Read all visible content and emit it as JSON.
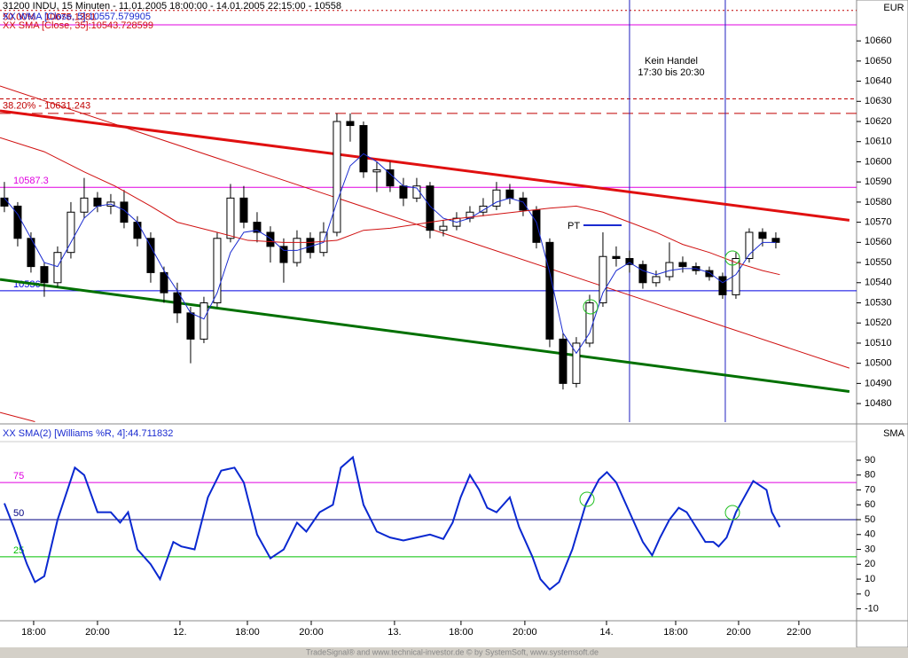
{
  "chart_data": [
    {
      "type": "candlestick",
      "title": "31200 INDU, 15 Minuten - 11.01.2005 18:00:00 - 14.01.2005 22:15:00 - 10558",
      "axis_label": "EUR",
      "x": [
        0,
        1,
        2,
        3,
        4,
        5,
        6,
        7,
        8,
        9,
        10,
        11,
        12,
        13,
        14,
        15,
        16,
        17,
        18,
        19,
        20,
        21,
        22,
        23,
        24,
        25,
        26,
        27,
        28,
        29,
        30,
        31,
        32,
        33,
        34,
        35,
        36,
        37,
        38,
        39,
        40,
        41,
        42,
        43,
        44,
        45,
        46,
        47,
        48,
        49,
        50,
        51,
        52,
        53,
        54,
        55,
        56,
        57,
        58
      ],
      "open": [
        10582,
        10578,
        10562,
        10548,
        10540,
        10555,
        10575,
        10582,
        10578,
        10580,
        10570,
        10562,
        10545,
        10535,
        10525,
        10512,
        10530,
        10562,
        10582,
        10570,
        10565,
        10558,
        10550,
        10562,
        10555,
        10565,
        10620,
        10618,
        10595,
        10596,
        10588,
        10582,
        10588,
        10566,
        10568,
        10572,
        10575,
        10578,
        10586,
        10582,
        10576,
        10560,
        10512,
        10490,
        10510,
        10530,
        10553,
        10552,
        10549,
        10540,
        10543,
        10550,
        10548,
        10546,
        10543,
        10534,
        10552,
        10565,
        10562
      ],
      "high": [
        10590,
        10580,
        10565,
        10550,
        10558,
        10580,
        10592,
        10585,
        10584,
        10586,
        10573,
        10565,
        10548,
        10540,
        10528,
        10533,
        10565,
        10589,
        10588,
        10575,
        10568,
        10562,
        10566,
        10565,
        10570,
        10624,
        10624,
        10620,
        10600,
        10600,
        10592,
        10592,
        10590,
        10571,
        10575,
        10578,
        10582,
        10590,
        10589,
        10585,
        10578,
        10562,
        10515,
        10513,
        10534,
        10565,
        10558,
        10556,
        10551,
        10546,
        10560,
        10553,
        10550,
        10548,
        10545,
        10555,
        10567,
        10567,
        10565
      ],
      "low": [
        10575,
        10558,
        10545,
        10533,
        10538,
        10552,
        10572,
        10575,
        10574,
        10567,
        10558,
        10540,
        10530,
        10520,
        10500,
        10510,
        10528,
        10560,
        10567,
        10560,
        10550,
        10540,
        10548,
        10552,
        10553,
        10563,
        10610,
        10592,
        10585,
        10585,
        10578,
        10580,
        10562,
        10563,
        10566,
        10570,
        10573,
        10576,
        10579,
        10573,
        10557,
        10508,
        10487,
        10488,
        10508,
        10528,
        10548,
        10545,
        10537,
        10538,
        10541,
        10545,
        10544,
        10541,
        10532,
        10532,
        10550,
        10558,
        10557
      ],
      "close": [
        10578,
        10562,
        10548,
        10540,
        10555,
        10575,
        10582,
        10578,
        10580,
        10570,
        10562,
        10545,
        10535,
        10525,
        10512,
        10530,
        10562,
        10582,
        10570,
        10565,
        10558,
        10550,
        10562,
        10555,
        10565,
        10620,
        10618,
        10595,
        10596,
        10588,
        10582,
        10588,
        10566,
        10568,
        10572,
        10575,
        10578,
        10586,
        10582,
        10576,
        10560,
        10512,
        10490,
        10510,
        10530,
        10553,
        10552,
        10549,
        10540,
        10543,
        10550,
        10548,
        10546,
        10543,
        10534,
        10552,
        10565,
        10562,
        10560
      ],
      "up_color": "#ffffff",
      "down_color": "#000000",
      "xlim": [
        -0.33,
        64.07
      ],
      "ylim": [
        10470.8,
        10680.3
      ],
      "yticks": [
        10480,
        10490,
        10500,
        10510,
        10520,
        10530,
        10540,
        10550,
        10560,
        10570,
        10580,
        10590,
        10600,
        10610,
        10620,
        10630,
        10640,
        10650,
        10660
      ],
      "series": [
        {
          "name": "XX WMA [Close, 5]:10557.579905",
          "color": "#1a2bd0",
          "x": [
            0,
            1,
            2,
            3,
            4,
            5,
            6,
            7,
            8,
            9,
            10,
            11,
            12,
            13,
            14,
            15,
            16,
            17,
            18,
            19,
            20,
            21,
            22,
            23,
            24,
            25,
            26,
            27,
            28,
            29,
            30,
            31,
            32,
            33,
            34,
            35,
            36,
            37,
            38,
            39,
            40,
            41,
            42,
            43,
            44,
            45,
            46,
            47,
            48,
            49,
            50,
            51,
            52,
            53,
            54,
            55,
            56,
            57,
            58
          ],
          "values": [
            10582,
            10574,
            10562,
            10550,
            10548,
            10560,
            10572,
            10578,
            10579,
            10576,
            10570,
            10558,
            10546,
            10536,
            10525,
            10522,
            10535,
            10555,
            10565,
            10566,
            10562,
            10556,
            10556,
            10558,
            10560,
            10580,
            10598,
            10604,
            10600,
            10594,
            10588,
            10587,
            10578,
            10572,
            10570,
            10572,
            10576,
            10580,
            10582,
            10580,
            10570,
            10545,
            10515,
            10505,
            10515,
            10535,
            10546,
            10550,
            10546,
            10544,
            10546,
            10547,
            10547,
            10545,
            10540,
            10544,
            10554,
            10560,
            10560
          ]
        },
        {
          "name": "XX SMA [Close, 35]:10543.728599",
          "color": "#d01010",
          "x": [
            -0.33,
            3,
            6,
            8.3,
            11,
            13,
            16,
            18.3,
            21,
            23,
            25,
            27,
            29,
            33,
            37,
            41,
            43,
            45,
            47,
            49,
            51,
            53,
            55,
            57,
            58.3
          ],
          "values": [
            10612,
            10605,
            10595,
            10588,
            10578,
            10570,
            10565,
            10561,
            10560,
            10560,
            10561,
            10566,
            10567,
            10571,
            10574,
            10577,
            10578,
            10575,
            10570,
            10565,
            10559,
            10555,
            10550,
            10546,
            10544
          ]
        }
      ],
      "levels": [
        {
          "value": 10675.138,
          "label": "50.00% - 10675.1381",
          "color": "#c00000",
          "style": "dotted"
        },
        {
          "value": 10668,
          "color": "#e000e0",
          "style": "solid"
        },
        {
          "value": 10631.243,
          "label": "38.20% - 10631.243",
          "color": "#c00000",
          "style": "dashed"
        },
        {
          "value": 10624,
          "color": "#c00000",
          "style": "longdash"
        },
        {
          "value": 10587.3,
          "show_value": true,
          "color": "#e000e0",
          "style": "solid"
        },
        {
          "value": 10536,
          "show_value": true,
          "color": "#0000e0",
          "style": "solid"
        }
      ],
      "trendlines": [
        {
          "x": [
            -0.33,
            63.53
          ],
          "y": [
            10625.3,
            10571
          ],
          "color": "#e01010",
          "width": 3
        },
        {
          "x": [
            -0.33,
            63.53
          ],
          "y": [
            10541.6,
            10486
          ],
          "color": "#007000",
          "width": 3
        },
        {
          "x": [
            -0.33,
            63.53
          ],
          "y": [
            10637.6,
            10497.6
          ],
          "color": "#d01010",
          "width": 1
        },
        {
          "x": [
            -0.33,
            2.3
          ],
          "y": [
            10475.6,
            10471
          ],
          "color": "#d01010",
          "width": 1
        }
      ],
      "vlines": [
        47,
        54.2
      ],
      "vline_color": "#2020c0",
      "annotations": [
        "Kein Handel",
        "17:30 bis 20:30",
        "PT"
      ]
    },
    {
      "type": "line",
      "title": "XX SMA(2) [Williams %R, 4]:44.711832",
      "axis_label": "SMA",
      "xlim": [
        -0.33,
        64.07
      ],
      "xticks": [
        {
          "value": 2.2,
          "label": "18:00"
        },
        {
          "value": 7,
          "label": "20:00"
        },
        {
          "value": 13.2,
          "label": "12."
        },
        {
          "value": 18.27,
          "label": "18:00"
        },
        {
          "value": 23.07,
          "label": "20:00"
        },
        {
          "value": 29.33,
          "label": "13."
        },
        {
          "value": 34.33,
          "label": "18:00"
        },
        {
          "value": 39.13,
          "label": "20:00"
        },
        {
          "value": 45.27,
          "label": "14."
        },
        {
          "value": 50.47,
          "label": "18:00"
        },
        {
          "value": 55.2,
          "label": "20:00"
        },
        {
          "value": 59.73,
          "label": "22:00"
        }
      ],
      "ylim": [
        -18,
        102.5
      ],
      "yticks": [
        -10,
        0,
        10,
        20,
        30,
        40,
        50,
        60,
        70,
        80,
        90
      ],
      "series": [
        {
          "color": "#0a28d0",
          "x": [
            0,
            0.7,
            1.7,
            2.3,
            3,
            4,
            5.3,
            6,
            7,
            8,
            8.7,
            9.3,
            10,
            11,
            11.7,
            12.7,
            13.3,
            14.3,
            15.3,
            16.3,
            17.3,
            18,
            19,
            20,
            21,
            22,
            22.7,
            23.7,
            24.7,
            25.3,
            26.2,
            27,
            28,
            29,
            30,
            31,
            32,
            33,
            33.7,
            34.3,
            35,
            35.7,
            36.3,
            37,
            38,
            38.7,
            39.7,
            40.3,
            41,
            41.7,
            42.7,
            43.7,
            44.7,
            45.3,
            46,
            47,
            48,
            48.7,
            49.3,
            50,
            50.7,
            51.3,
            52,
            52.7,
            53.3,
            53.7,
            54.3,
            55,
            56.3,
            57.3,
            57.7,
            58.3
          ],
          "values": [
            61,
            45,
            20,
            8,
            12,
            50,
            85,
            80,
            55,
            55,
            48,
            55,
            30,
            20,
            10,
            35,
            32,
            30,
            65,
            83,
            85,
            75,
            40,
            24,
            30,
            48,
            42,
            55,
            60,
            85,
            92,
            60,
            42,
            38,
            36,
            38,
            40,
            37,
            48,
            65,
            80,
            70,
            58,
            55,
            65,
            45,
            25,
            10,
            3,
            8,
            30,
            60,
            77,
            82,
            75,
            55,
            35,
            26,
            38,
            50,
            58,
            55,
            45,
            35,
            35,
            32,
            38,
            55,
            76,
            70,
            55,
            45
          ]
        }
      ],
      "levels": [
        {
          "value": 75,
          "color": "#e000e0"
        },
        {
          "value": 50,
          "color": "#000080"
        },
        {
          "value": 25,
          "color": "#00c000"
        }
      ]
    }
  ],
  "footer": "TradeSignal® and www.technical-investor.de © by SystemSoft, www.systemsoft.de"
}
